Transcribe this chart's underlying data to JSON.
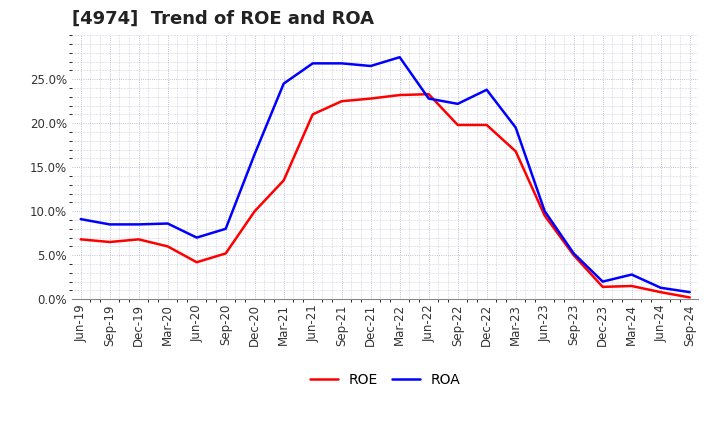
{
  "title": "[4974]  Trend of ROE and ROA",
  "labels": [
    "Jun-19",
    "Sep-19",
    "Dec-19",
    "Mar-20",
    "Jun-20",
    "Sep-20",
    "Dec-20",
    "Mar-21",
    "Jun-21",
    "Sep-21",
    "Dec-21",
    "Mar-22",
    "Jun-22",
    "Sep-22",
    "Dec-22",
    "Mar-23",
    "Jun-23",
    "Sep-23",
    "Dec-23",
    "Mar-24",
    "Jun-24",
    "Sep-24"
  ],
  "ROE": [
    6.8,
    6.5,
    6.8,
    6.0,
    4.2,
    5.2,
    10.0,
    13.5,
    21.0,
    22.5,
    22.8,
    23.2,
    23.3,
    19.8,
    19.8,
    16.8,
    9.5,
    5.0,
    1.4,
    1.5,
    0.8,
    0.2
  ],
  "ROA": [
    9.1,
    8.5,
    8.5,
    8.6,
    7.0,
    8.0,
    16.5,
    24.5,
    26.8,
    26.8,
    26.5,
    27.5,
    22.8,
    22.2,
    23.8,
    19.5,
    10.0,
    5.2,
    2.0,
    2.8,
    1.3,
    0.8
  ],
  "ROE_color": "#ff0000",
  "ROA_color": "#0000ff",
  "background_color": "#ffffff",
  "plot_bg_color": "#ffffff",
  "grid_color": "#aaaacc",
  "ylim": [
    0,
    30
  ],
  "yticks": [
    0.0,
    5.0,
    10.0,
    15.0,
    20.0,
    25.0
  ],
  "title_fontsize": 13,
  "legend_fontsize": 10,
  "tick_fontsize": 8.5,
  "line_width": 1.8
}
